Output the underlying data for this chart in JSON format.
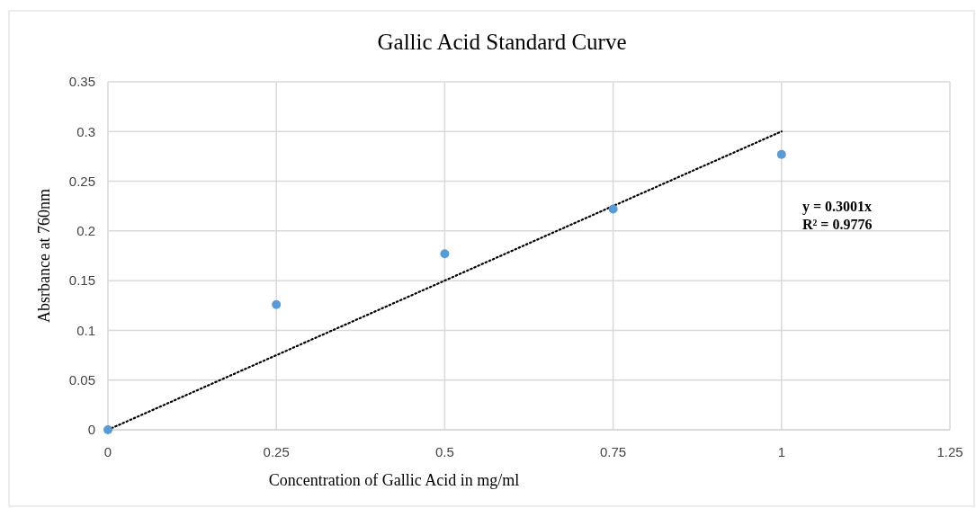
{
  "chart_data": {
    "type": "scatter",
    "title": "Gallic Acid Standard Curve",
    "xlabel": "Concentration of Gallic Acid in mg/ml",
    "ylabel": "Absrbance at 760nm",
    "x": [
      0,
      0.25,
      0.5,
      0.75,
      1
    ],
    "series": [
      {
        "color": "#5b9bd5",
        "values": [
          0,
          0.126,
          0.177,
          0.222,
          0.277
        ],
        "marker": "circle"
      },
      {
        "type": "line",
        "color": "#000000",
        "x": [
          0,
          1
        ],
        "values": [
          0,
          0.3001
        ],
        "marker": "none",
        "line_style": "dotted"
      }
    ],
    "xlim": [
      0,
      1.25
    ],
    "xticks": [
      0,
      0.25,
      0.5,
      0.75,
      1,
      1.25
    ],
    "ylim": [
      0,
      0.35
    ],
    "yticks": [
      0,
      0.05,
      0.1,
      0.15,
      0.2,
      0.25,
      0.3,
      0.35
    ],
    "grid": true,
    "annotations": [
      "y = 0.3001x",
      "R² = 0.9776"
    ]
  }
}
